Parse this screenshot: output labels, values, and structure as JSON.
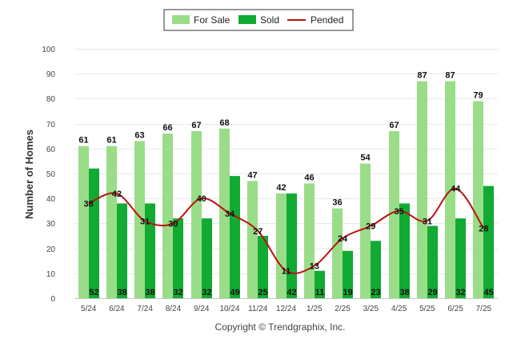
{
  "chart_data": {
    "type": "bar",
    "ylabel": "Number of Homes",
    "xlabel": "",
    "ylim": [
      0,
      100
    ],
    "yticks": [
      0,
      10,
      20,
      30,
      40,
      50,
      60,
      70,
      80,
      90,
      100
    ],
    "grid": true,
    "legend_position": "top",
    "categories": [
      "5/24",
      "6/24",
      "7/24",
      "8/24",
      "9/24",
      "10/24",
      "11/24",
      "12/24",
      "1/25",
      "2/25",
      "3/25",
      "4/25",
      "5/25",
      "6/25",
      "7/25"
    ],
    "series": [
      {
        "name": "For Sale",
        "type": "bar",
        "color": "#99dd88",
        "values": [
          61,
          61,
          63,
          66,
          67,
          68,
          47,
          42,
          46,
          36,
          54,
          67,
          87,
          87,
          79
        ]
      },
      {
        "name": "Sold",
        "type": "bar",
        "color": "#11aa33",
        "values": [
          52,
          38,
          38,
          32,
          32,
          49,
          25,
          42,
          11,
          19,
          23,
          38,
          29,
          32,
          45
        ]
      },
      {
        "name": "Pended",
        "type": "line",
        "color": "#bb1111",
        "values": [
          38,
          42,
          31,
          30,
          40,
          34,
          27,
          11,
          13,
          24,
          29,
          35,
          31,
          44,
          28
        ]
      }
    ]
  },
  "footer": "Copyright © Trendgraphix, Inc."
}
